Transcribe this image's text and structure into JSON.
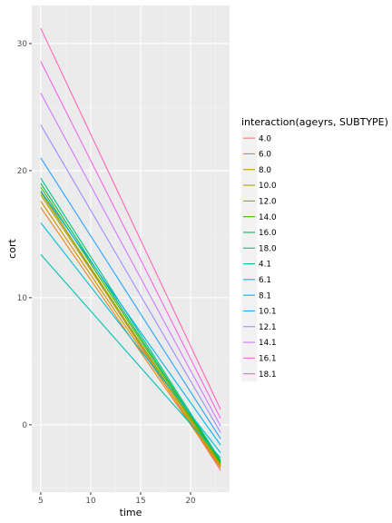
{
  "chart_data": {
    "type": "line",
    "title": "",
    "xlabel": "time",
    "ylabel": "cort",
    "xlim": [
      4.1,
      23.9
    ],
    "ylim": [
      -5.3,
      33.0
    ],
    "x_ticks": [
      5,
      10,
      15,
      20
    ],
    "y_ticks": [
      0,
      10,
      20,
      30
    ],
    "grid": true,
    "legend_position": "right",
    "legend_title": "interaction(ageyrs, SUBTYPE)",
    "series": [
      {
        "name": "4.0",
        "color": "#F8766D",
        "x": [
          5,
          23
        ],
        "y": [
          18.4,
          -3.6
        ]
      },
      {
        "name": "6.0",
        "color": "#E7851E",
        "x": [
          5,
          23
        ],
        "y": [
          17.1,
          -3.4
        ]
      },
      {
        "name": "8.0",
        "color": "#D09400",
        "x": [
          5,
          23
        ],
        "y": [
          17.6,
          -3.3
        ]
      },
      {
        "name": "10.0",
        "color": "#B2A100",
        "x": [
          5,
          23
        ],
        "y": [
          18.1,
          -3.2
        ]
      },
      {
        "name": "12.0",
        "color": "#89AC00",
        "x": [
          5,
          23
        ],
        "y": [
          18.3,
          -3.1
        ]
      },
      {
        "name": "14.0",
        "color": "#45B500",
        "x": [
          5,
          23
        ],
        "y": [
          18.7,
          -3.0
        ]
      },
      {
        "name": "16.0",
        "color": "#00BC51",
        "x": [
          5,
          23
        ],
        "y": [
          19.0,
          -2.9
        ]
      },
      {
        "name": "18.0",
        "color": "#00C087",
        "x": [
          5,
          23
        ],
        "y": [
          19.4,
          -2.8
        ]
      },
      {
        "name": "4.1",
        "color": "#00C0B2",
        "x": [
          5,
          23
        ],
        "y": [
          13.4,
          -2.6
        ]
      },
      {
        "name": "6.1",
        "color": "#00BCD6",
        "x": [
          5,
          23
        ],
        "y": [
          15.9,
          -2.2
        ]
      },
      {
        "name": "8.1",
        "color": "#00B3F2",
        "x": [
          5,
          23
        ],
        "y": [
          18.4,
          -1.6
        ]
      },
      {
        "name": "10.1",
        "color": "#29A3FF",
        "x": [
          5,
          23
        ],
        "y": [
          21.0,
          -1.1
        ]
      },
      {
        "name": "12.1",
        "color": "#9C8DFF",
        "x": [
          5,
          23
        ],
        "y": [
          23.6,
          -0.6
        ]
      },
      {
        "name": "14.1",
        "color": "#D277FF",
        "x": [
          5,
          23
        ],
        "y": [
          26.1,
          -0.1
        ]
      },
      {
        "name": "16.1",
        "color": "#F166E8",
        "x": [
          5,
          23
        ],
        "y": [
          28.6,
          0.5
        ]
      },
      {
        "name": "18.1",
        "color": "#FF65BA",
        "x": [
          5,
          23
        ],
        "y": [
          31.2,
          1.2
        ]
      }
    ]
  }
}
